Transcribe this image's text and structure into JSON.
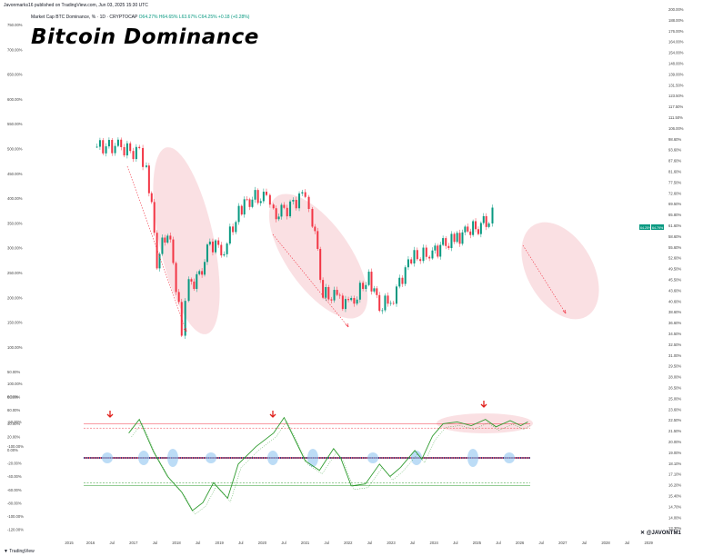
{
  "header": {
    "publish_line": "Javonmarks16 published on TradingView.com, Jun 03, 2025 15:30 UTC",
    "symbol_line": "Market Cap BTC Dominance, % · 1D · CRYPTOCAP",
    "symbol_values": "O64.27% H64.65% L63.67% C64.25% +0.18 (+0.28%)",
    "title": "Bitcoin Dominance"
  },
  "footer": {
    "tradingview_label": "TradingView",
    "handle": "@JAVONTM1"
  },
  "colors": {
    "up": "#089981",
    "down": "#f23645",
    "ellipse": "#f5c6cc",
    "oscillator": "#2e9b2e",
    "arrow": "#e0201b"
  },
  "chart_data": {
    "type": "candlestick",
    "title": "Bitcoin Dominance",
    "price_panel": {
      "left_axis_labels": [
        "750.00%",
        "700.00%",
        "650.00%",
        "600.00%",
        "550.00%",
        "500.00%",
        "450.00%",
        "400.00%",
        "350.00%",
        "300.00%",
        "250.00%",
        "200.00%",
        "150.00%",
        "100.00%",
        "50.00%",
        "0.00%",
        "-50.00%",
        "-100.00%"
      ],
      "right_axis_labels": [
        "200.00%",
        "188.00%",
        "176.00%",
        "164.00%",
        "154.00%",
        "148.00%",
        "139.00%",
        "131.50%",
        "123.50%",
        "117.50%",
        "111.50%",
        "106.00%",
        "98.60%",
        "93.60%",
        "87.60%",
        "81.60%",
        "77.50%",
        "72.60%",
        "69.50%",
        "65.80%",
        "61.60%",
        "58.60%",
        "55.60%",
        "52.60%",
        "49.50%",
        "45.50%",
        "43.60%",
        "40.60%",
        "38.60%",
        "36.60%",
        "34.50%",
        "32.50%",
        "31.00%",
        "29.50%",
        "28.00%",
        "26.50%",
        "25.00%",
        "23.60%",
        "22.50%",
        "21.50%",
        "20.00%",
        "19.00%",
        "18.10%",
        "17.10%",
        "16.20%",
        "15.40%",
        "14.70%",
        "14.00%",
        "13.30%"
      ],
      "last_price_labels": [
        "64.25%",
        "64.79%"
      ],
      "series": [
        {
          "date": "2016-01",
          "close": 90.2
        },
        {
          "date": "2016-07",
          "close": 90.5
        },
        {
          "date": "2017-01",
          "close": 86.5
        },
        {
          "date": "2017-03",
          "close": 81.5
        },
        {
          "date": "2017-06",
          "close": 49.5
        },
        {
          "date": "2017-09",
          "close": 59.0
        },
        {
          "date": "2018-01",
          "close": 34.0
        },
        {
          "date": "2018-03",
          "close": 44.0
        },
        {
          "date": "2018-06",
          "close": 45.5
        },
        {
          "date": "2018-09",
          "close": 54.5
        },
        {
          "date": "2019-01",
          "close": 53.0
        },
        {
          "date": "2019-06",
          "close": 66.0
        },
        {
          "date": "2019-09",
          "close": 69.5
        },
        {
          "date": "2020-01",
          "close": 68.5
        },
        {
          "date": "2020-03",
          "close": 63.0
        },
        {
          "date": "2020-06",
          "close": 64.5
        },
        {
          "date": "2020-12",
          "close": 71.0
        },
        {
          "date": "2021-02",
          "close": 62.0
        },
        {
          "date": "2021-05",
          "close": 42.0
        },
        {
          "date": "2021-09",
          "close": 41.0
        },
        {
          "date": "2022-01",
          "close": 39.5
        },
        {
          "date": "2022-06",
          "close": 46.0
        },
        {
          "date": "2022-09",
          "close": 39.0
        },
        {
          "date": "2023-01",
          "close": 41.5
        },
        {
          "date": "2023-06",
          "close": 50.5
        },
        {
          "date": "2023-12",
          "close": 52.0
        },
        {
          "date": "2024-03",
          "close": 54.0
        },
        {
          "date": "2024-07",
          "close": 56.0
        },
        {
          "date": "2024-10",
          "close": 58.5
        },
        {
          "date": "2025-01",
          "close": 59.5
        },
        {
          "date": "2025-04",
          "close": 62.5
        },
        {
          "date": "2025-06",
          "close": 64.25
        }
      ]
    },
    "oscillator_panel": {
      "left_axis_labels": [
        "100.00%",
        "80.00%",
        "60.00%",
        "40.00%",
        "20.00%",
        "0.00%",
        "-20.00%",
        "-40.00%",
        "-60.00%",
        "-80.00%",
        "-100.00%",
        "-120.00%"
      ],
      "levels": [
        55,
        48,
        -40,
        -45
      ],
      "series": [
        {
          "date": "2016-01",
          "value": 40
        },
        {
          "date": "2016-04",
          "value": 62
        },
        {
          "date": "2016-08",
          "value": 10
        },
        {
          "date": "2016-12",
          "value": -30
        },
        {
          "date": "2017-04",
          "value": -55
        },
        {
          "date": "2017-07",
          "value": -85
        },
        {
          "date": "2017-10",
          "value": -72
        },
        {
          "date": "2018-01",
          "value": -40
        },
        {
          "date": "2018-05",
          "value": -65
        },
        {
          "date": "2018-08",
          "value": -10
        },
        {
          "date": "2019-01",
          "value": 18
        },
        {
          "date": "2019-06",
          "value": 40
        },
        {
          "date": "2019-09",
          "value": 65
        },
        {
          "date": "2019-12",
          "value": 30
        },
        {
          "date": "2020-03",
          "value": -5
        },
        {
          "date": "2020-07",
          "value": -20
        },
        {
          "date": "2020-11",
          "value": 15
        },
        {
          "date": "2021-01",
          "value": 0
        },
        {
          "date": "2021-04",
          "value": -45
        },
        {
          "date": "2021-08",
          "value": -42
        },
        {
          "date": "2021-12",
          "value": -10
        },
        {
          "date": "2022-03",
          "value": -30
        },
        {
          "date": "2022-06",
          "value": -15
        },
        {
          "date": "2022-10",
          "value": 12
        },
        {
          "date": "2022-12",
          "value": -2
        },
        {
          "date": "2023-03",
          "value": 35
        },
        {
          "date": "2023-06",
          "value": 55
        },
        {
          "date": "2023-10",
          "value": 58
        },
        {
          "date": "2024-02",
          "value": 52
        },
        {
          "date": "2024-06",
          "value": 62
        },
        {
          "date": "2024-09",
          "value": 50
        },
        {
          "date": "2025-01",
          "value": 60
        },
        {
          "date": "2025-04",
          "value": 52
        },
        {
          "date": "2025-06",
          "value": 58
        }
      ]
    },
    "x_axis_labels": [
      "2015",
      "2016",
      "Jul",
      "2017",
      "Jul",
      "2018",
      "Jul",
      "2019",
      "Jul",
      "2020",
      "Jul",
      "2021",
      "Jul",
      "2022",
      "Jul",
      "2023",
      "Jul",
      "2024",
      "Jul",
      "2025",
      "Jul",
      "2026",
      "Jul",
      "2027",
      "Jul",
      "2028",
      "Jul",
      "2029"
    ],
    "x_range": [
      "2015-01",
      "2029-02"
    ],
    "y_range": [
      -125,
      770
    ],
    "annotations": [
      "down arrows above oscillator peaks (2016, 2019, 2024)",
      "highlight ellipses around declines (2017, 2020-2021) and projected decline (2025-2026)"
    ]
  }
}
